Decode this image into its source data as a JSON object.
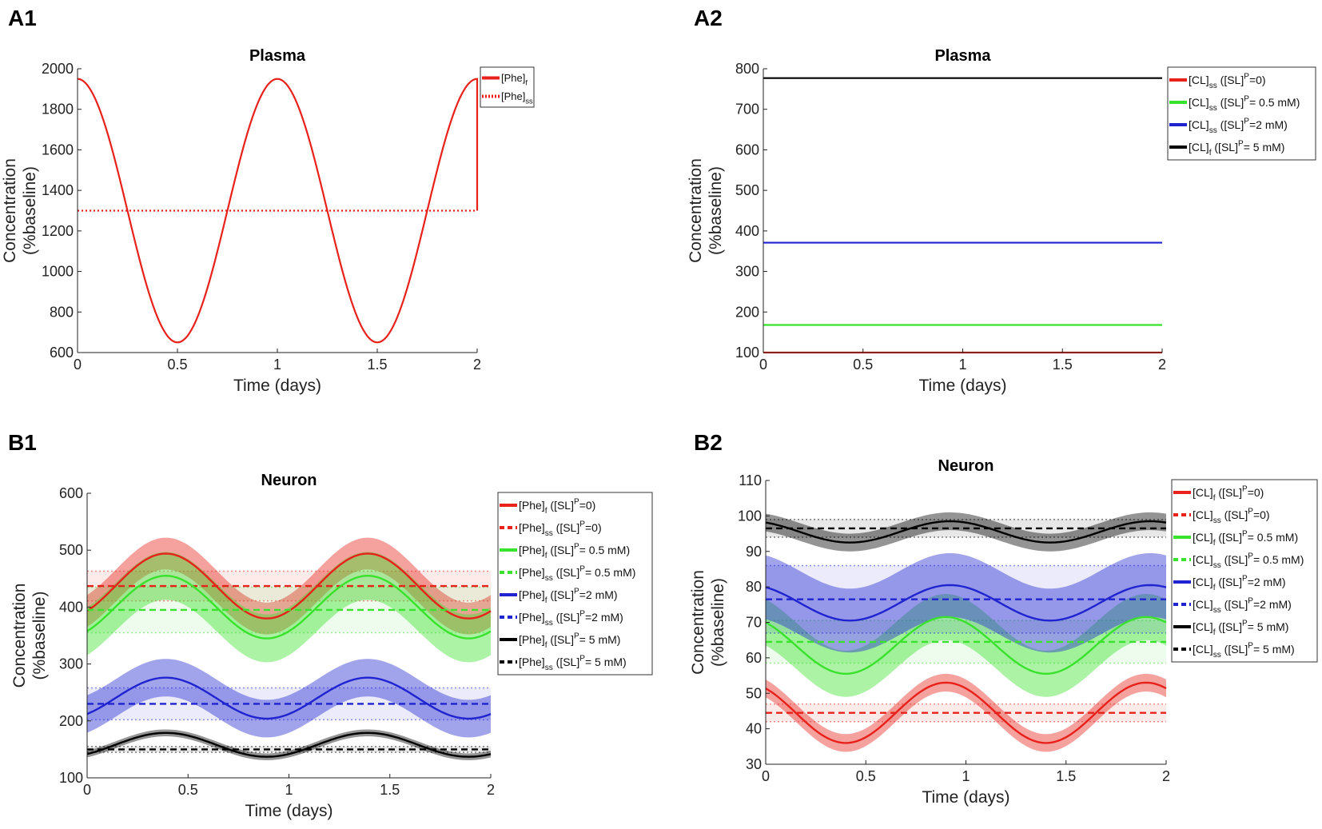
{
  "panels": {
    "A1": "A1",
    "A2": "A2",
    "B1": "B1",
    "B2": "B2"
  },
  "colors": {
    "red": "#e8211b",
    "green": "#39e22c",
    "blue": "#1f24d0",
    "black": "#000000"
  },
  "chart_data": [
    {
      "id": "A1",
      "type": "line",
      "title": "Plasma",
      "xlabel": "Time (days)",
      "ylabel_lines": [
        "Concentration",
        "(%baseline)"
      ],
      "xlim": [
        0,
        2
      ],
      "ylim": [
        600,
        2000
      ],
      "xticks": [
        "0",
        "0.5",
        "1",
        "1.5",
        "2"
      ],
      "yticks": [
        "600",
        "800",
        "1000",
        "1200",
        "1400",
        "1600",
        "1800",
        "2000"
      ],
      "series": [
        {
          "name": "[Phe]f",
          "legend_main": "[Phe]",
          "legend_sub": "f",
          "legend_rest": "",
          "legend_sup": "",
          "legend_tail": "",
          "color": "#e8211b",
          "style": "solid",
          "kind": "sine",
          "mean": 1300,
          "amp": 650,
          "period": 1,
          "phase": 0
        },
        {
          "name": "[Phe]ss",
          "legend_main": "[Phe]",
          "legend_sub": "ss",
          "legend_rest": "",
          "legend_sup": "",
          "legend_tail": "",
          "color": "#e8211b",
          "style": "dotted",
          "kind": "const",
          "mean": 1300
        }
      ]
    },
    {
      "id": "A2",
      "type": "line",
      "title": "Plasma",
      "xlabel": "Time (days)",
      "ylabel_lines": [
        "Concentration",
        "(%baseline)"
      ],
      "xlim": [
        0,
        2
      ],
      "ylim": [
        100,
        800
      ],
      "xticks": [
        "0",
        "0.5",
        "1",
        "1.5",
        "2"
      ],
      "yticks": [
        "100",
        "200",
        "300",
        "400",
        "500",
        "600",
        "700",
        "800"
      ],
      "series": [
        {
          "name": "[CL]ss ([SL]P=0)",
          "legend_main": "[CL]",
          "legend_sub": "ss",
          "legend_rest": " ([SL]",
          "legend_sup": "P",
          "legend_tail": "=0)",
          "color": "#e8211b",
          "style": "solid",
          "kind": "const",
          "mean": 100
        },
        {
          "name": "[CL]ss ([SL]P= 0.5 mM)",
          "legend_main": "[CL]",
          "legend_sub": "ss",
          "legend_rest": " ([SL]",
          "legend_sup": "P",
          "legend_tail": "= 0.5 mM)",
          "color": "#39e22c",
          "style": "solid",
          "kind": "const",
          "mean": 168
        },
        {
          "name": "[CL]ss ([SL]P=2 mM)",
          "legend_main": "[CL]",
          "legend_sub": "ss",
          "legend_rest": " ([SL]",
          "legend_sup": "P",
          "legend_tail": "=2  mM)",
          "color": "#1f24d0",
          "style": "solid",
          "kind": "const",
          "mean": 371
        },
        {
          "name": "[CL]f ([SL]P= 5 mM)",
          "legend_main": "[CL]",
          "legend_sub": "f",
          "legend_rest": " ([SL]",
          "legend_sup": "P",
          "legend_tail": "= 5 mM)",
          "color": "#000000",
          "style": "solid",
          "kind": "const",
          "mean": 777
        }
      ]
    },
    {
      "id": "B1",
      "type": "area",
      "title": "Neuron",
      "xlabel": "Time (days)",
      "ylabel_lines": [
        "Concentration",
        "(%baseline)"
      ],
      "xlim": [
        0,
        2
      ],
      "ylim": [
        100,
        600
      ],
      "xticks": [
        "0",
        "0.5",
        "1",
        "1.5",
        "2"
      ],
      "yticks": [
        "100",
        "200",
        "300",
        "400",
        "500",
        "600"
      ],
      "series": [
        {
          "name": "[Phe]f ([SL]P=0)",
          "legend_main": "[Phe]",
          "legend_sub": "f",
          "legend_rest": " ([SL]",
          "legend_sup": "P",
          "legend_tail": "=0)",
          "color": "#e8211b",
          "style": "solid",
          "kind": "sine",
          "mean": 437,
          "amp": 57,
          "period": 1,
          "phase": 0.39,
          "band": 28
        },
        {
          "name": "[Phe]ss ([SL]P=0)",
          "legend_main": "[Phe]",
          "legend_sub": "ss",
          "legend_rest": " ([SL]",
          "legend_sup": "P",
          "legend_tail": "=0)",
          "color": "#e8211b",
          "style": "dashed",
          "kind": "const",
          "mean": 437,
          "band": 26
        },
        {
          "name": "[Phe]f ([SL]P= 0.5 mM)",
          "legend_main": "[Phe]",
          "legend_sub": "f",
          "legend_rest": " ([SL]",
          "legend_sup": "P",
          "legend_tail": "= 0.5 mM)",
          "color": "#39e22c",
          "style": "solid",
          "kind": "sine",
          "mean": 400,
          "amp": 55,
          "period": 1,
          "phase": 0.39,
          "band": 42
        },
        {
          "name": "[Phe]ss ([SL]P= 0.5 mM)",
          "legend_main": "[Phe]",
          "legend_sub": "ss",
          "legend_rest": " ([SL]",
          "legend_sup": "P",
          "legend_tail": "= 0.5 mM)",
          "color": "#39e22c",
          "style": "dashed",
          "kind": "const",
          "mean": 395,
          "band": 40
        },
        {
          "name": "[Phe]f ([SL]P=2 mM)",
          "legend_main": "[Phe]",
          "legend_sub": "f",
          "legend_rest": " ([SL]",
          "legend_sup": "P",
          "legend_tail": "=2  mM)",
          "color": "#1f24d0",
          "style": "solid",
          "kind": "sine",
          "mean": 240,
          "amp": 36,
          "period": 1,
          "phase": 0.39,
          "band": 33
        },
        {
          "name": "[Phe]ss ([SL]P=2 mM)",
          "legend_main": "[Phe]",
          "legend_sub": "ss",
          "legend_rest": " ([SL]",
          "legend_sup": "P",
          "legend_tail": "=2  mM)",
          "color": "#1f24d0",
          "style": "dashed",
          "kind": "const",
          "mean": 230,
          "band": 28
        },
        {
          "name": "[Phe]f ([SL]P= 5 mM)",
          "legend_main": "[Phe]",
          "legend_sub": "f",
          "legend_rest": " ([SL]",
          "legend_sup": "P",
          "legend_tail": "= 5 mM)",
          "color": "#000000",
          "style": "solid",
          "kind": "sine",
          "mean": 158,
          "amp": 21,
          "period": 1,
          "phase": 0.39,
          "band": 6
        },
        {
          "name": "[Phe]ss ([SL]P= 5 mM)",
          "legend_main": "[Phe]",
          "legend_sub": "ss",
          "legend_rest": " ([SL]",
          "legend_sup": "P",
          "legend_tail": "= 5 mM)",
          "color": "#000000",
          "style": "dashed",
          "kind": "const",
          "mean": 150,
          "band": 5
        }
      ]
    },
    {
      "id": "B2",
      "type": "area",
      "title": "Neuron",
      "xlabel": "Time (days)",
      "ylabel_lines": [
        "Concentration",
        "(%baseline)"
      ],
      "xlim": [
        0,
        2
      ],
      "ylim": [
        30,
        110
      ],
      "xticks": [
        "0",
        "0.5",
        "1",
        "1.5",
        "2"
      ],
      "yticks": [
        "30",
        "40",
        "50",
        "60",
        "70",
        "80",
        "90",
        "100",
        "110"
      ],
      "series": [
        {
          "name": "[CL]f ([SL]P=0)",
          "legend_main": "[CL]",
          "legend_sub": "f",
          "legend_rest": " ([SL]",
          "legend_sup": "P",
          "legend_tail": "=0)",
          "color": "#e8211b",
          "style": "solid",
          "kind": "sine",
          "mean": 44.5,
          "amp": 8.5,
          "period": 1,
          "phase": 0.9,
          "band": 2.5
        },
        {
          "name": "[CL]ss ([SL]P=0)",
          "legend_main": "[CL]",
          "legend_sub": "ss",
          "legend_rest": " ([SL]",
          "legend_sup": "P",
          "legend_tail": "=0)",
          "color": "#e8211b",
          "style": "dashed",
          "kind": "const",
          "mean": 44.5,
          "band": 2.5
        },
        {
          "name": "[CL]f ([SL]P= 0.5 mM)",
          "legend_main": "[CL]",
          "legend_sub": "f",
          "legend_rest": " ([SL]",
          "legend_sup": "P",
          "legend_tail": "= 0.5 mM)",
          "color": "#39e22c",
          "style": "solid",
          "kind": "sine",
          "mean": 63.5,
          "amp": 8,
          "period": 1,
          "phase": 0.9,
          "band": 6.5
        },
        {
          "name": "[CL]ss ([SL]P= 0.5 mM)",
          "legend_main": "[CL]",
          "legend_sub": "ss",
          "legend_rest": " ([SL]",
          "legend_sup": "P",
          "legend_tail": "= 0.5 mM)",
          "color": "#39e22c",
          "style": "dashed",
          "kind": "const",
          "mean": 64.5,
          "band": 6
        },
        {
          "name": "[CL]f ([SL]P=2 mM)",
          "legend_main": "[CL]",
          "legend_sub": "f",
          "legend_rest": " ([SL]",
          "legend_sup": "P",
          "legend_tail": "=2  mM)",
          "color": "#1f24d0",
          "style": "solid",
          "kind": "sine",
          "mean": 75.5,
          "amp": 5,
          "period": 1,
          "phase": 0.92,
          "band": 9
        },
        {
          "name": "[CL]ss ([SL]P=2 mM)",
          "legend_main": "[CL]",
          "legend_sub": "ss",
          "legend_rest": " ([SL]",
          "legend_sup": "P",
          "legend_tail": "=2  mM)",
          "color": "#1f24d0",
          "style": "dashed",
          "kind": "const",
          "mean": 76.5,
          "band": 9.5
        },
        {
          "name": "[CL]f ([SL]P= 5 mM)",
          "legend_main": "[CL]",
          "legend_sub": "f",
          "legend_rest": " ([SL]",
          "legend_sup": "P",
          "legend_tail": "= 5 mM)",
          "color": "#000000",
          "style": "solid",
          "kind": "sine",
          "mean": 95.5,
          "amp": 3,
          "period": 1,
          "phase": 0.92,
          "band": 2.5
        },
        {
          "name": "[CL]ss ([SL]P= 5 mM)",
          "legend_main": "[CL]",
          "legend_sub": "ss",
          "legend_rest": " ([SL]",
          "legend_sup": "P",
          "legend_tail": "= 5 mM)",
          "color": "#000000",
          "style": "dashed",
          "kind": "const",
          "mean": 96.5,
          "band": 2.5
        }
      ]
    }
  ]
}
